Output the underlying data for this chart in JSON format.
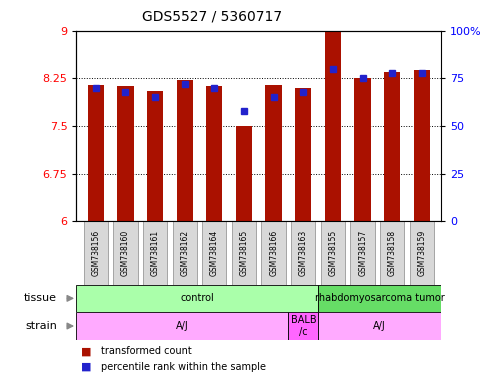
{
  "title": "GDS5527 / 5360717",
  "samples": [
    "GSM738156",
    "GSM738160",
    "GSM738161",
    "GSM738162",
    "GSM738164",
    "GSM738165",
    "GSM738166",
    "GSM738163",
    "GSM738155",
    "GSM738157",
    "GSM738158",
    "GSM738159"
  ],
  "transformed_counts": [
    8.15,
    8.13,
    8.05,
    8.22,
    8.13,
    7.5,
    8.15,
    8.1,
    9.0,
    8.25,
    8.35,
    8.38
  ],
  "percentile_ranks": [
    70,
    68,
    65,
    72,
    70,
    58,
    65,
    68,
    80,
    75,
    78,
    78
  ],
  "ylim_left": [
    6,
    9
  ],
  "ylim_right": [
    0,
    100
  ],
  "yticks_left": [
    6,
    6.75,
    7.5,
    8.25,
    9
  ],
  "yticks_right": [
    0,
    25,
    50,
    75,
    100
  ],
  "bar_color": "#AA1100",
  "dot_color": "#2222CC",
  "tissue_data": [
    {
      "label": "control",
      "xstart": 0,
      "xend": 8,
      "color": "#AAFFAA"
    },
    {
      "label": "rhabdomyosarcoma tumor",
      "xstart": 8,
      "xend": 12,
      "color": "#66DD66"
    }
  ],
  "strain_data": [
    {
      "label": "A/J",
      "xstart": 0,
      "xend": 7,
      "color": "#FFAAFF"
    },
    {
      "label": "BALB\n/c",
      "xstart": 7,
      "xend": 8,
      "color": "#FF66FF"
    },
    {
      "label": "A/J",
      "xstart": 8,
      "xend": 12,
      "color": "#FFAAFF"
    }
  ],
  "bar_width": 0.55,
  "x_min": -0.65,
  "x_max": 11.65
}
